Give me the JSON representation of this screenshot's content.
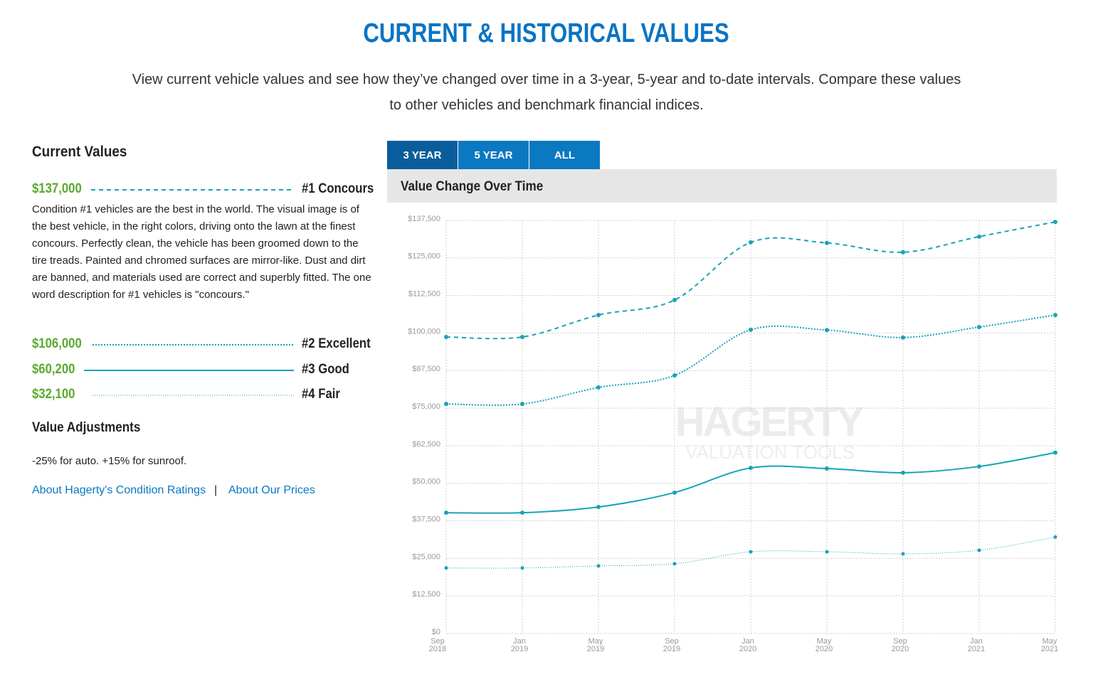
{
  "header": {
    "title": "CURRENT & HISTORICAL VALUES",
    "subtitle": "View current vehicle values and see how they’ve changed over time in a 3-year, 5-year and to-date intervals. Compare these values to other vehicles and benchmark financial indices."
  },
  "current_values": {
    "title": "Current Values",
    "items": [
      {
        "price": "$137,000",
        "description": "Condition #1 vehicles are the best in the world. The visual image is of the best vehicle, in the right colors, driving onto the lawn at the finest concours. Perfectly clean, the vehicle has been groomed down to the tire treads. Painted and chromed surfaces are mirror-like. Dust and dirt are banned, and materials used are correct and superbly fitted. The one word description for #1 vehicles is \"concours.\""
      },
      {
        "price": "$106,000"
      },
      {
        "price": "$60,200"
      },
      {
        "price": "$32,100"
      }
    ]
  },
  "value_adjustments": {
    "title": "Value Adjustments",
    "text": "-25% for auto. +15% for sunroof."
  },
  "links": [
    "About Hagerty's Condition Ratings",
    "About Our Prices"
  ],
  "link_separator": "|",
  "tabs": [
    "3 YEAR",
    "5 YEAR",
    "ALL"
  ],
  "active_tab": 0,
  "chart_data": {
    "type": "line",
    "title": "Value Change Over Time",
    "watermark": [
      "HAGERTY",
      "VALUATION TOOLS"
    ],
    "categories": [
      "Sep 2018",
      "Jan 2019",
      "May 2019",
      "Sep 2019",
      "Jan 2020",
      "May 2020",
      "Sep 2020",
      "Jan 2021",
      "May 2021"
    ],
    "ylim": [
      0,
      137500
    ],
    "yticks": [
      {
        "value": 0,
        "label": "$0"
      },
      {
        "value": 12500,
        "label": "$12,500"
      },
      {
        "value": 25000,
        "label": "$25,000"
      },
      {
        "value": 37500,
        "label": "$37,500"
      },
      {
        "value": 50000,
        "label": "$50,000"
      },
      {
        "value": 62500,
        "label": "$62,500"
      },
      {
        "value": 75000,
        "label": "$75,000"
      },
      {
        "value": 87500,
        "label": "$87,500"
      },
      {
        "value": 100000,
        "label": "$100,000"
      },
      {
        "value": 112500,
        "label": "$112,500"
      },
      {
        "value": 125000,
        "label": "$125,000"
      },
      {
        "value": 137500,
        "label": "$137,500"
      }
    ],
    "grid": true,
    "series": [
      {
        "name": "#1 Concours",
        "color": "#18a3b5",
        "line_style": "dashed",
        "line_width": 2,
        "values": [
          98700,
          98700,
          106000,
          111000,
          130200,
          130000,
          126900,
          132100,
          137000
        ]
      },
      {
        "name": "#2 Excellent",
        "color": "#18a3b5",
        "line_style": "dotted",
        "line_width": 2,
        "values": [
          76400,
          76400,
          81900,
          85900,
          101100,
          101000,
          98500,
          102000,
          106000
        ]
      },
      {
        "name": "#3 Good",
        "color": "#18a3b5",
        "line_style": "solid",
        "line_width": 2,
        "values": [
          40200,
          40200,
          42100,
          46900,
          55100,
          54900,
          53500,
          55600,
          60200
        ]
      },
      {
        "name": "#4 Fair",
        "color": "#18a3b5",
        "line_style": "dotted",
        "line_width": 1,
        "values": [
          21800,
          21800,
          22500,
          23200,
          27200,
          27200,
          26500,
          27700,
          32100
        ]
      }
    ]
  }
}
